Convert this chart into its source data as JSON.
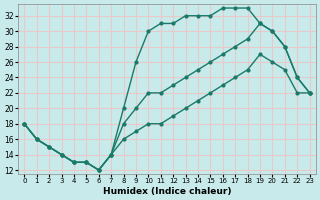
{
  "xlabel": "Humidex (Indice chaleur)",
  "ylabel": "",
  "bg_color": "#c8eaea",
  "grid_color": "#e8c8c8",
  "line_color": "#1a7a6a",
  "xlim": [
    -0.5,
    23.5
  ],
  "ylim": [
    11.5,
    33.5
  ],
  "xticks": [
    0,
    1,
    2,
    3,
    4,
    5,
    6,
    7,
    8,
    9,
    10,
    11,
    12,
    13,
    14,
    15,
    16,
    17,
    18,
    19,
    20,
    21,
    22,
    23
  ],
  "yticks": [
    12,
    14,
    16,
    18,
    20,
    22,
    24,
    26,
    28,
    30,
    32
  ],
  "line1_x": [
    0,
    1,
    2,
    3,
    4,
    5,
    6,
    7,
    8,
    9,
    10,
    11,
    12,
    13,
    14,
    15,
    16,
    17,
    18,
    19,
    20,
    21,
    22,
    23
  ],
  "line1_y": [
    18,
    16,
    15,
    14,
    13,
    13,
    12,
    14,
    20,
    26,
    30,
    31,
    31,
    32,
    32,
    32,
    33,
    33,
    33,
    31,
    30,
    28,
    24,
    22
  ],
  "line2_x": [
    0,
    1,
    2,
    3,
    4,
    5,
    6,
    7,
    8,
    9,
    10,
    11,
    12,
    13,
    14,
    15,
    16,
    17,
    18,
    19,
    20,
    21,
    22,
    23
  ],
  "line2_y": [
    18,
    16,
    15,
    14,
    13,
    13,
    12,
    14,
    18,
    20,
    22,
    22,
    23,
    24,
    25,
    26,
    27,
    28,
    29,
    31,
    30,
    28,
    24,
    22
  ],
  "line3_x": [
    0,
    1,
    2,
    3,
    4,
    5,
    6,
    7,
    8,
    9,
    10,
    11,
    12,
    13,
    14,
    15,
    16,
    17,
    18,
    19,
    20,
    21,
    22,
    23
  ],
  "line3_y": [
    18,
    16,
    15,
    14,
    13,
    13,
    12,
    14,
    16,
    17,
    18,
    18,
    19,
    20,
    21,
    22,
    23,
    24,
    25,
    27,
    26,
    25,
    22,
    22
  ]
}
